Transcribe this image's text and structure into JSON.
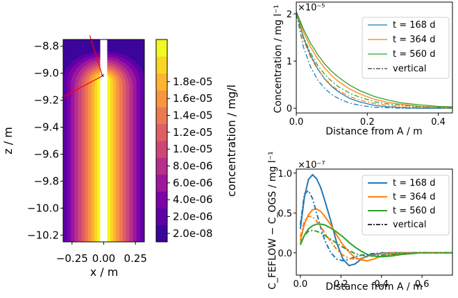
{
  "chart_data": [
    {
      "type": "heatmap",
      "xlabel": "x / m",
      "ylabel": "z / m",
      "xlim": [
        -0.32,
        0.32
      ],
      "ylim": [
        -10.25,
        -8.75
      ],
      "xticks": [
        "-0.25",
        "0.00",
        "0.25"
      ],
      "yticks": [
        "-8.8",
        "-9.0",
        "-9.2",
        "-9.4",
        "-9.6",
        "-9.8",
        "-10.0",
        "-10.2"
      ],
      "colorbar": {
        "label": "concentration / mg/l",
        "ticks": [
          "1.8e-05",
          "1.6e-05",
          "1.4e-05",
          "1.2e-05",
          "1.0e-05",
          "8.0e-06",
          "6.0e-06",
          "4.0e-06",
          "2.0e-06",
          "2.0e-08"
        ],
        "levels": [
          2e-08,
          2e-06,
          4e-06,
          6e-06,
          8e-06,
          1e-05,
          1.2e-05,
          1.4e-05,
          1.6e-05,
          1.8e-05
        ],
        "colors": [
          "#3b049a",
          "#5c01a6",
          "#7e03a8",
          "#9c179e",
          "#b52f8c",
          "#cc4778",
          "#de5f65",
          "#ed7953",
          "#f89540",
          "#fdb42f",
          "#fbd524",
          "#f0f921"
        ]
      },
      "annotation_color": "#ff0000"
    },
    {
      "type": "line",
      "xlabel": "Distance from A / m",
      "ylabel": "Concentration / mg l⁻¹",
      "scale_label": "×10⁻⁵",
      "xlim": [
        0,
        0.44
      ],
      "ylim": [
        -0.1,
        2.25
      ],
      "xticks": [
        0.0,
        0.2,
        0.4
      ],
      "yticks": [
        0,
        1,
        2
      ],
      "x": [
        0.0,
        0.02,
        0.04,
        0.06,
        0.08,
        0.1,
        0.12,
        0.15,
        0.18,
        0.22,
        0.26,
        0.3,
        0.35,
        0.4,
        0.44
      ],
      "series": [
        {
          "name": "t = 168 d",
          "color": "#1f77b4",
          "style": "solid",
          "values": [
            2.05,
            1.5,
            1.12,
            0.84,
            0.62,
            0.46,
            0.34,
            0.21,
            0.13,
            0.06,
            0.03,
            0.01,
            0.0,
            0.0,
            0.0
          ]
        },
        {
          "name": "t = 364 d",
          "color": "#ff7f0e",
          "style": "solid",
          "values": [
            2.05,
            1.62,
            1.3,
            1.05,
            0.85,
            0.69,
            0.56,
            0.41,
            0.3,
            0.19,
            0.12,
            0.08,
            0.04,
            0.02,
            0.01
          ]
        },
        {
          "name": "t = 560 d",
          "color": "#2ca02c",
          "style": "solid",
          "values": [
            2.05,
            1.68,
            1.38,
            1.14,
            0.94,
            0.78,
            0.65,
            0.49,
            0.37,
            0.25,
            0.17,
            0.11,
            0.07,
            0.04,
            0.03
          ]
        },
        {
          "name": "t = 168 d",
          "color": "#1f77b4",
          "style": "dashdot",
          "values": [
            2.0,
            1.3,
            0.88,
            0.6,
            0.42,
            0.29,
            0.2,
            0.11,
            0.06,
            0.02,
            0.01,
            0.0,
            0.0,
            0.0,
            0.0
          ]
        },
        {
          "name": "t = 364 d",
          "color": "#ff7f0e",
          "style": "dashdot",
          "values": [
            2.0,
            1.45,
            1.08,
            0.82,
            0.63,
            0.48,
            0.37,
            0.25,
            0.17,
            0.1,
            0.06,
            0.03,
            0.02,
            0.01,
            0.0
          ]
        },
        {
          "name": "t = 560 d",
          "color": "#2ca02c",
          "style": "dashdot",
          "values": [
            2.0,
            1.52,
            1.17,
            0.91,
            0.72,
            0.57,
            0.45,
            0.32,
            0.23,
            0.14,
            0.09,
            0.06,
            0.03,
            0.02,
            0.01
          ]
        }
      ],
      "legend": {
        "placement": "top-right",
        "entries": [
          {
            "label": "t = 168 d",
            "color": "#1f77b4",
            "style": "solid"
          },
          {
            "label": "t = 364 d",
            "color": "#ff7f0e",
            "style": "solid"
          },
          {
            "label": "t = 560 d",
            "color": "#2ca02c",
            "style": "solid"
          },
          {
            "label": "vertical",
            "color": "#333333",
            "style": "dashdot"
          }
        ]
      }
    },
    {
      "type": "line",
      "xlabel": "Distance from A / m",
      "ylabel": "C_FEFLOW − C_OGS / mg l⁻¹",
      "scale_label": "×10⁻⁷",
      "xlim": [
        -0.02,
        0.75
      ],
      "ylim": [
        -0.28,
        1.05
      ],
      "xticks": [
        0.0,
        0.2,
        0.4,
        0.6
      ],
      "yticks": [
        0.0,
        0.5,
        1.0
      ],
      "x": [
        0.0,
        0.02,
        0.04,
        0.06,
        0.08,
        0.1,
        0.12,
        0.15,
        0.18,
        0.21,
        0.24,
        0.27,
        0.3,
        0.33,
        0.36,
        0.4,
        0.45,
        0.5,
        0.55,
        0.6,
        0.65,
        0.7,
        0.75
      ],
      "series": [
        {
          "name": "t = 168 d",
          "color": "#1f77b4",
          "style": "solid",
          "values": [
            0.3,
            0.7,
            0.92,
            0.98,
            0.93,
            0.82,
            0.66,
            0.4,
            0.12,
            -0.08,
            -0.16,
            -0.14,
            -0.08,
            -0.04,
            -0.02,
            -0.01,
            0.0,
            0.0,
            0.0,
            0.0,
            0.0,
            0.0,
            0.0
          ]
        },
        {
          "name": "t = 364 d",
          "color": "#ff7f0e",
          "style": "solid",
          "values": [
            0.15,
            0.36,
            0.48,
            0.54,
            0.55,
            0.52,
            0.46,
            0.35,
            0.22,
            0.1,
            0.01,
            -0.06,
            -0.09,
            -0.1,
            -0.08,
            -0.04,
            -0.02,
            -0.01,
            0.0,
            0.0,
            0.0,
            0.0,
            0.0
          ]
        },
        {
          "name": "t = 560 d",
          "color": "#2ca02c",
          "style": "solid",
          "values": [
            0.1,
            0.22,
            0.3,
            0.34,
            0.36,
            0.36,
            0.35,
            0.31,
            0.26,
            0.2,
            0.13,
            0.07,
            0.02,
            -0.02,
            -0.04,
            -0.05,
            -0.04,
            -0.02,
            -0.01,
            0.0,
            0.0,
            0.0,
            0.0
          ]
        },
        {
          "name": "t = 168 d",
          "color": "#1f77b4",
          "style": "dashdot",
          "values": [
            0.35,
            0.74,
            0.78,
            0.68,
            0.5,
            0.32,
            0.16,
            0.0,
            -0.08,
            -0.1,
            -0.08,
            -0.05,
            -0.03,
            -0.02,
            -0.01,
            0.0,
            0.0,
            0.0,
            0.0,
            0.0,
            0.0,
            0.0,
            0.0
          ]
        },
        {
          "name": "t = 364 d",
          "color": "#ff7f0e",
          "style": "dashdot",
          "values": [
            0.2,
            0.4,
            0.46,
            0.45,
            0.4,
            0.33,
            0.25,
            0.14,
            0.04,
            -0.03,
            -0.07,
            -0.08,
            -0.07,
            -0.05,
            -0.03,
            -0.01,
            0.0,
            0.0,
            0.0,
            0.0,
            0.0,
            0.0,
            0.0
          ]
        },
        {
          "name": "t = 560 d",
          "color": "#2ca02c",
          "style": "dashdot",
          "values": [
            0.12,
            0.22,
            0.27,
            0.28,
            0.27,
            0.25,
            0.22,
            0.17,
            0.12,
            0.07,
            0.03,
            -0.01,
            -0.03,
            -0.04,
            -0.04,
            -0.03,
            -0.02,
            -0.01,
            0.0,
            0.0,
            0.0,
            0.0,
            0.0
          ]
        }
      ],
      "legend": {
        "placement": "top-right",
        "entries": [
          {
            "label": "t = 168 d",
            "color": "#1f77b4",
            "style": "solid"
          },
          {
            "label": "t = 364 d",
            "color": "#ff7f0e",
            "style": "solid"
          },
          {
            "label": "t = 560 d",
            "color": "#2ca02c",
            "style": "solid"
          },
          {
            "label": "vertical",
            "color": "#333333",
            "style": "dashdot"
          }
        ]
      }
    }
  ]
}
